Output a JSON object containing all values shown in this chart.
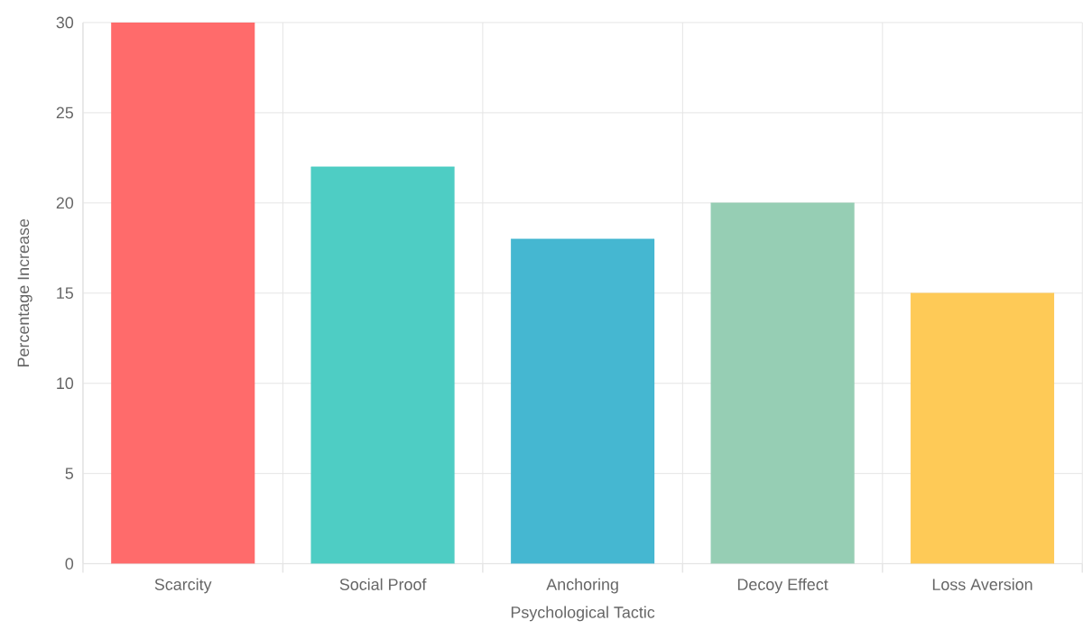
{
  "chart_data": {
    "type": "bar",
    "xlabel": "Psychological Tactic",
    "ylabel": "Percentage Increase",
    "categories": [
      "Scarcity",
      "Social Proof",
      "Anchoring",
      "Decoy Effect",
      "Loss Aversion"
    ],
    "values": [
      30,
      22,
      18,
      20,
      15
    ],
    "colors": [
      "#ff6b6b",
      "#4ecdc4",
      "#45b7d1",
      "#96ceb4",
      "#feca57"
    ],
    "ylim": [
      0,
      30
    ],
    "yticks": [
      0,
      5,
      10,
      15,
      20,
      25,
      30
    ],
    "grid": true
  }
}
